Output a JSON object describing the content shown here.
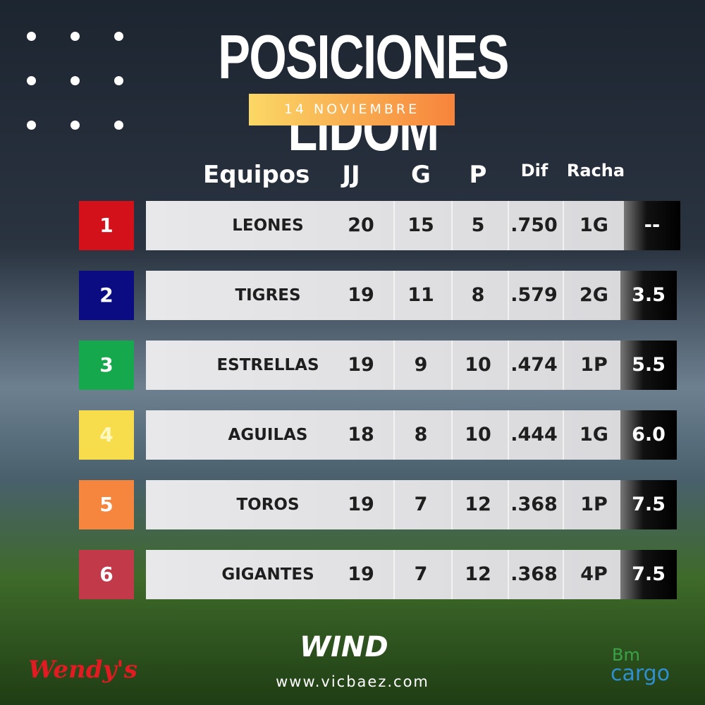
{
  "header": {
    "title": "POSICIONES LIDOM",
    "date": "14 NOVIEMBRE"
  },
  "table": {
    "columns": [
      "Equipos",
      "JJ",
      "G",
      "P",
      "Dif",
      "Racha"
    ],
    "rank_colors": [
      "#d3111b",
      "#0b0b82",
      "#15a84c",
      "#f7dc4b",
      "#f6853d",
      "#c23a4a"
    ],
    "rows": [
      [
        "1",
        "LEONES",
        "20",
        "15",
        "5",
        ".750",
        "1G",
        "--"
      ],
      [
        "2",
        "TIGRES",
        "19",
        "11",
        "8",
        ".579",
        "2G",
        "3.5"
      ],
      [
        "3",
        "ESTRELLAS",
        "19",
        "9",
        "10",
        ".474",
        "1P",
        "5.5"
      ],
      [
        "4",
        "AGUILAS",
        "18",
        "8",
        "10",
        ".444",
        "1G",
        "6.0"
      ],
      [
        "5",
        "TOROS",
        "19",
        "7",
        "12",
        ".368",
        "1P",
        "7.5"
      ],
      [
        "6",
        "GIGANTES",
        "19",
        "7",
        "12",
        ".368",
        "4P",
        "7.5"
      ]
    ]
  },
  "footer": {
    "sponsors": [
      "Wendy's",
      "WIND",
      "Bm",
      "cargo"
    ],
    "website": "www.vicbaez.com"
  }
}
